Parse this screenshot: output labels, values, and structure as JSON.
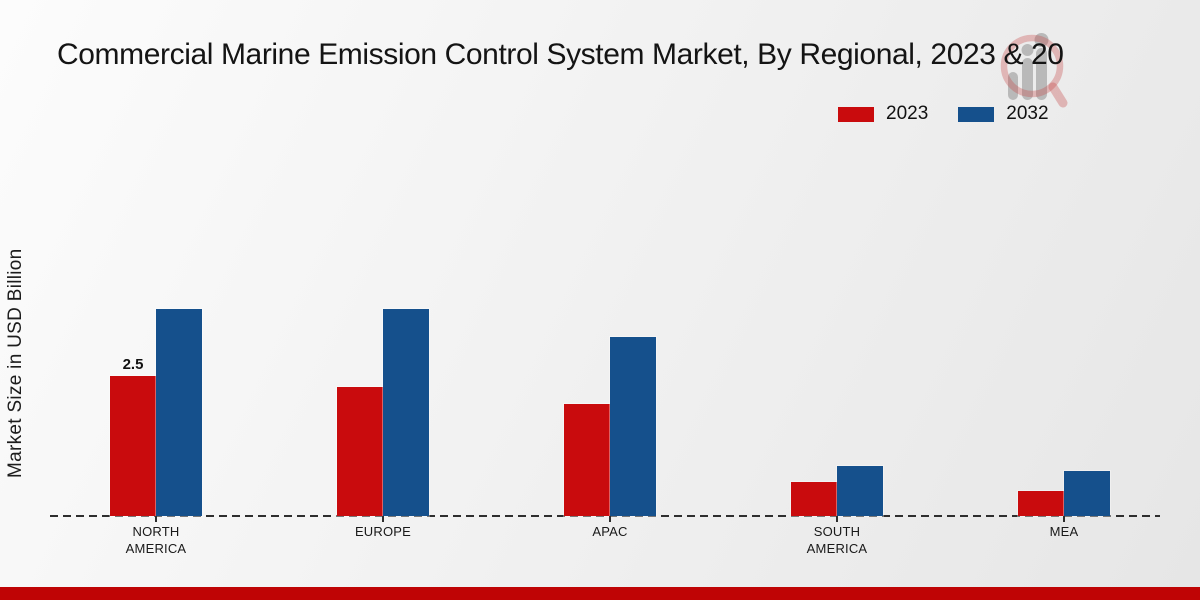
{
  "title": "Commercial Marine Emission Control System Market, By Regional, 2023 & 20",
  "y_axis_label": "Market Size in USD Billion",
  "colors": {
    "series_2023": "#c90b0d",
    "series_2032": "#15508c",
    "bottom_strip": "#bf0405",
    "baseline": "#2e2e2e",
    "background_light": "#fcfcfc",
    "background_dark": "#e6e6e6"
  },
  "watermark": {
    "icon": "market-research-magnifier-logo"
  },
  "chart_data": {
    "type": "bar",
    "title": "Commercial Marine Emission Control System Market, By Regional, 2023 & 20",
    "xlabel": "",
    "ylabel": "Market Size in USD Billion",
    "categories": [
      "NORTH AMERICA",
      "EUROPE",
      "APAC",
      "SOUTH AMERICA",
      "MEA"
    ],
    "series": [
      {
        "name": "2023",
        "color": "#c90b0d",
        "values": [
          2.5,
          2.3,
          2.0,
          0.6,
          0.45
        ]
      },
      {
        "name": "2032",
        "color": "#15508c",
        "values": [
          3.7,
          3.7,
          3.2,
          0.9,
          0.8
        ]
      }
    ],
    "annotations": [
      {
        "series": "2023",
        "category": "NORTH AMERICA",
        "text": "2.5"
      }
    ],
    "ylim": [
      0,
      4
    ],
    "grid": false,
    "y_axis_ticks_visible": false,
    "legend_position": "top-right",
    "baseline_style": "dashed"
  }
}
